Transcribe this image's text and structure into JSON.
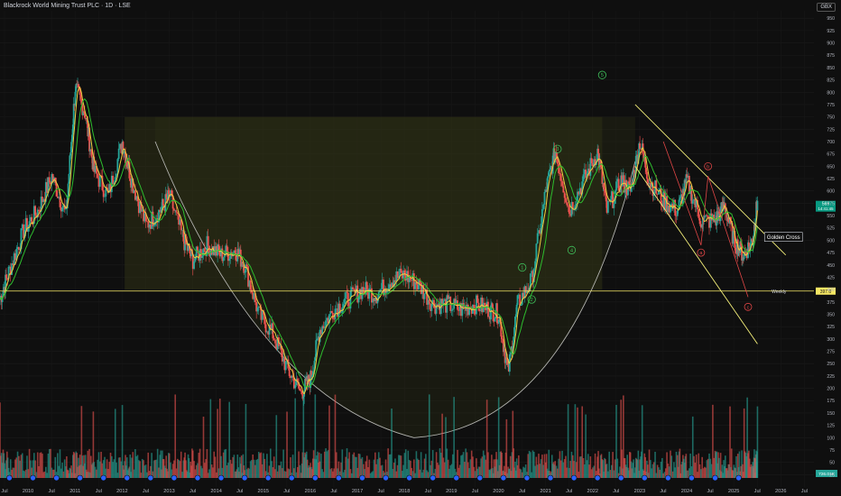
{
  "header": {
    "title": "Blackrock World Mining Trust PLC · 1D · LSE",
    "currency": "GBX"
  },
  "colors": {
    "background": "#0f0f0f",
    "price_up": "#26a69a",
    "price_down": "#ef5350",
    "ma_fast": "#f0d040",
    "ma_slow": "#2ebd2e",
    "pattern_fill": "#2f3216",
    "cup_line": "#cfcfcf",
    "channel_line": "#f5f07a",
    "wave_green": "#3fbf5a",
    "wave_red": "#e04646",
    "weekly_line": "#f5e663"
  },
  "chart_data": {
    "type": "line",
    "title": "Blackrock World Mining Trust PLC · 1D · LSE",
    "xlabel": "",
    "ylabel": "",
    "x_ticks": [
      "Jul",
      "2010",
      "Jul",
      "2011",
      "Jul",
      "2012",
      "Jul",
      "2013",
      "Jul",
      "2014",
      "Jul",
      "2015",
      "Jul",
      "2016",
      "Jul",
      "2017",
      "Jul",
      "2018",
      "Jul",
      "2019",
      "Jul",
      "2020",
      "Jul",
      "2021",
      "Jul",
      "2022",
      "Jul",
      "2023",
      "Jul",
      "2024",
      "Jul",
      "2025",
      "Jul",
      "2026",
      "Jul"
    ],
    "y_ticks": [
      950,
      925,
      900,
      875,
      850,
      825,
      800,
      775,
      750,
      725,
      700,
      675,
      650,
      625,
      600,
      575,
      550,
      525,
      500,
      475,
      450,
      425,
      400,
      375,
      350,
      325,
      300,
      275,
      250,
      225,
      200,
      175,
      150,
      125,
      100,
      75,
      50,
      25
    ],
    "ylim": [
      0,
      965
    ],
    "xlim": [
      2009.5,
      2026.8
    ],
    "series": [
      {
        "name": "",
        "x": [
          2009.5,
          2009.7,
          2010.0,
          2010.3,
          2010.6,
          2010.9,
          2011.1,
          2011.3,
          2011.5,
          2011.8,
          2012.1,
          2012.3,
          2012.6,
          2012.9,
          2013.1,
          2013.4,
          2013.6,
          2013.9,
          2014.2,
          2014.5,
          2014.7,
          2015.0,
          2015.3,
          2015.6,
          2015.9,
          2016.1,
          2016.3,
          2016.6,
          2016.9,
          2017.2,
          2017.5,
          2017.8,
          2018.1,
          2018.4,
          2018.7,
          2019.0,
          2019.3,
          2019.6,
          2019.9,
          2020.1,
          2020.3,
          2020.5,
          2020.8,
          2021.1,
          2021.3,
          2021.6,
          2021.9,
          2022.2,
          2022.4,
          2022.7,
          2022.9,
          2023.1,
          2023.3,
          2023.6,
          2023.9,
          2024.1,
          2024.4,
          2024.7,
          2024.9,
          2025.1,
          2025.3,
          2025.5,
          2025.6
        ],
        "values": [
          380,
          440,
          520,
          560,
          630,
          550,
          810,
          760,
          640,
          590,
          700,
          620,
          530,
          560,
          590,
          500,
          460,
          490,
          470,
          480,
          450,
          350,
          310,
          240,
          190,
          220,
          320,
          360,
          380,
          400,
          390,
          420,
          430,
          410,
          370,
          370,
          360,
          370,
          360,
          350,
          230,
          370,
          420,
          600,
          680,
          560,
          620,
          680,
          560,
          620,
          600,
          700,
          620,
          580,
          560,
          620,
          540,
          540,
          570,
          500,
          470,
          500,
          580
        ]
      }
    ],
    "annotations": {
      "golden_cross_label": "Golden Cross",
      "weekly_label": "Weekly",
      "weekly_value": "397.0",
      "last_price": "569",
      "countdown": "14:41:45",
      "volume_badge": "726.01K",
      "wave_labels_green": [
        "1",
        "2",
        "3",
        "4",
        "5"
      ],
      "wave_labels_red": [
        "a",
        "b",
        "c"
      ]
    }
  }
}
